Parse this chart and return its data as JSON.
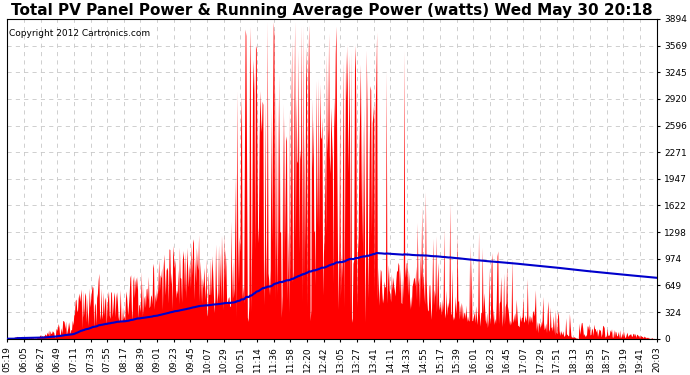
{
  "title": "Total PV Panel Power & Running Average Power (watts) Wed May 30 20:18",
  "copyright": "Copyright 2012 Cartronics.com",
  "background_color": "#ffffff",
  "plot_bg_color": "#ffffff",
  "grid_color": "#c8c8c8",
  "bar_color": "#ff0000",
  "line_color": "#0000cc",
  "ymin": 0.0,
  "ymax": 3893.8,
  "yticks": [
    0.0,
    324.5,
    649.0,
    973.5,
    1297.9,
    1622.4,
    1946.9,
    2271.4,
    2595.9,
    2920.4,
    3244.9,
    3569.4,
    3893.8
  ],
  "xtick_labels": [
    "05:19",
    "06:05",
    "06:27",
    "06:49",
    "07:11",
    "07:33",
    "07:55",
    "08:17",
    "08:39",
    "09:01",
    "09:23",
    "09:45",
    "10:07",
    "10:29",
    "10:51",
    "11:14",
    "11:36",
    "11:58",
    "12:20",
    "12:42",
    "13:05",
    "13:27",
    "13:41",
    "14:11",
    "14:33",
    "14:55",
    "15:17",
    "15:39",
    "16:01",
    "16:23",
    "16:45",
    "17:07",
    "17:29",
    "17:51",
    "18:13",
    "18:35",
    "18:57",
    "19:19",
    "19:41",
    "20:03"
  ],
  "title_fontsize": 11,
  "tick_fontsize": 6.5,
  "copyright_fontsize": 6.5,
  "figwidth": 6.9,
  "figheight": 3.75,
  "dpi": 100
}
